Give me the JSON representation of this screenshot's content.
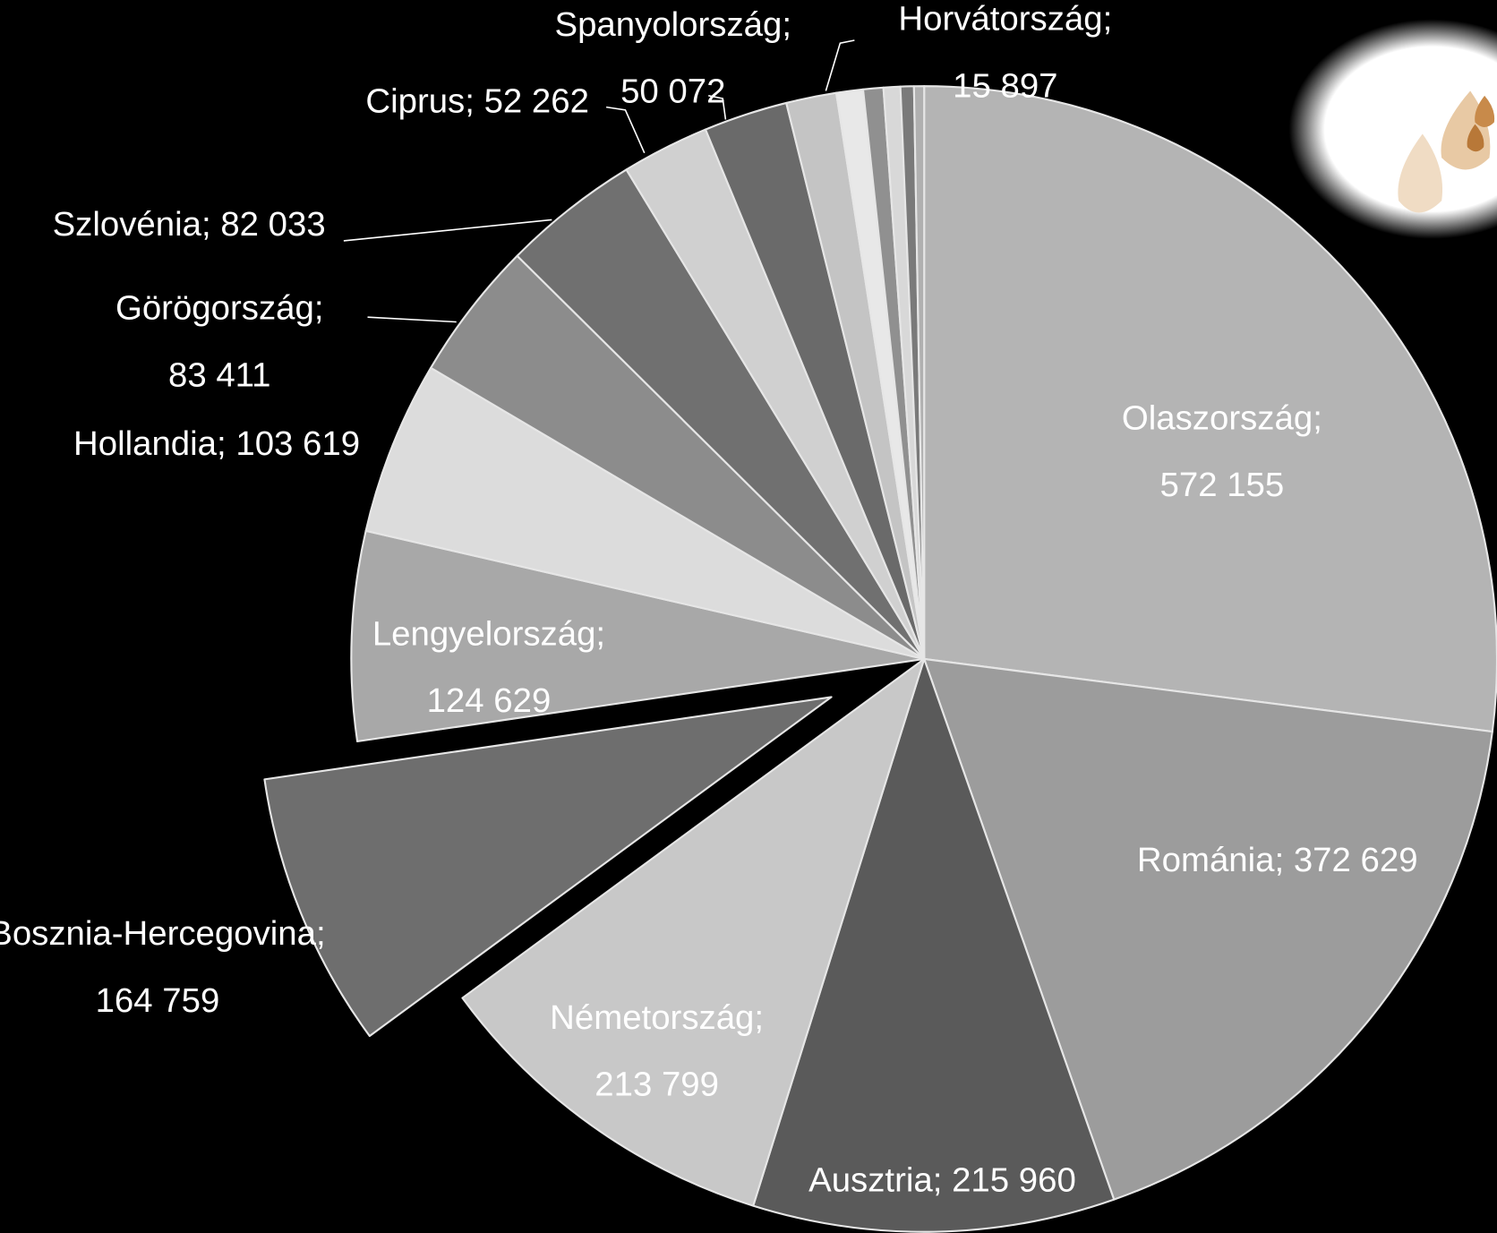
{
  "chart_data": {
    "type": "pie",
    "categories": [
      "Olaszország",
      "Románia",
      "Ausztria",
      "Németország",
      "Bosznia-Hercegovina",
      "Lengyelország",
      "Hollandia",
      "Görögország",
      "Szlovénia",
      "Ciprus",
      "Spanyolország",
      null,
      "Horvátország",
      null,
      null,
      null,
      null
    ],
    "values": [
      572155,
      372629,
      215960,
      213799,
      164759,
      124629,
      103619,
      83411,
      82033,
      52262,
      50072,
      30000,
      15897,
      12000,
      10000,
      8000,
      6000
    ],
    "value_labels": [
      "572 155",
      "372 629",
      "215 960",
      "213 799",
      "164 759",
      "124 629",
      "103 619",
      "83 411",
      "82 033",
      "52 262",
      "50 072",
      null,
      "15 897",
      null,
      null,
      null,
      null
    ],
    "label_separator": ";",
    "colors": [
      "#b4b4b4",
      "#9c9c9c",
      "#5a5a5a",
      "#c8c8c8",
      "#6e6e6e",
      "#a8a8a8",
      "#dcdcdc",
      "#8c8c8c",
      "#707070",
      "#d0d0d0",
      "#6a6a6a",
      "#c4c4c4",
      "#e8e8e8",
      "#909090",
      "#d8d8d8",
      "#7a7a7a",
      "#b0b0b0"
    ],
    "exploded": "Bosznia-Hercegovina"
  }
}
